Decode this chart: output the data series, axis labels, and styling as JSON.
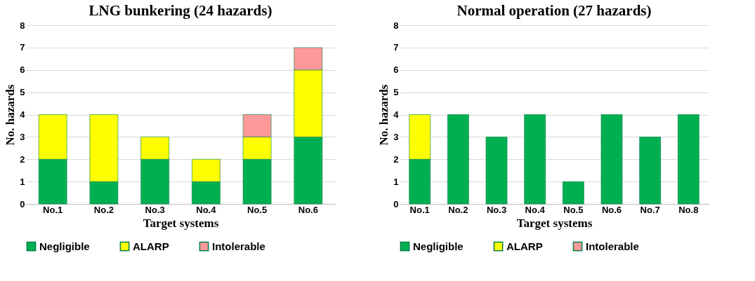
{
  "chart_data": [
    {
      "type": "bar",
      "title": "LNG bunkering (24 hazards)",
      "xlabel": "Target systems",
      "ylabel": "No. hazards",
      "categories": [
        "No.1",
        "No.2",
        "No.3",
        "No.4",
        "No.5",
        "No.6"
      ],
      "stacked": true,
      "ylim": [
        0,
        8
      ],
      "yticks": [
        0,
        1,
        2,
        3,
        4,
        5,
        6,
        7,
        8
      ],
      "grid": "y",
      "legend": "bottom",
      "series": [
        {
          "name": "Negligible",
          "color": "#00b050",
          "values": [
            2,
            1,
            2,
            1,
            2,
            3
          ]
        },
        {
          "name": "ALARP",
          "color": "#ffff00",
          "values": [
            2,
            3,
            1,
            1,
            1,
            3
          ]
        },
        {
          "name": "Intolerable",
          "color": "#ff9999",
          "values": [
            null,
            null,
            null,
            null,
            1,
            1
          ]
        }
      ]
    },
    {
      "type": "bar",
      "title": "Normal operation (27 hazards)",
      "xlabel": "Target systems",
      "ylabel": "No. hazards",
      "categories": [
        "No.1",
        "No.2",
        "No.3",
        "No.4",
        "No.5",
        "No.6",
        "No.7",
        "No.8"
      ],
      "stacked": true,
      "ylim": [
        0,
        8
      ],
      "yticks": [
        0,
        1,
        2,
        3,
        4,
        5,
        6,
        7,
        8
      ],
      "grid": "y",
      "legend": "bottom",
      "series": [
        {
          "name": "Negligible",
          "color": "#00b050",
          "values": [
            2,
            4,
            3,
            4,
            1,
            4,
            3,
            4
          ]
        },
        {
          "name": "ALARP",
          "color": "#ffff00",
          "values": [
            2,
            null,
            null,
            null,
            null,
            null,
            null,
            null
          ]
        },
        {
          "name": "Intolerable",
          "color": "#ff9999",
          "values": [
            null,
            null,
            null,
            null,
            null,
            null,
            null,
            null
          ]
        }
      ]
    }
  ]
}
